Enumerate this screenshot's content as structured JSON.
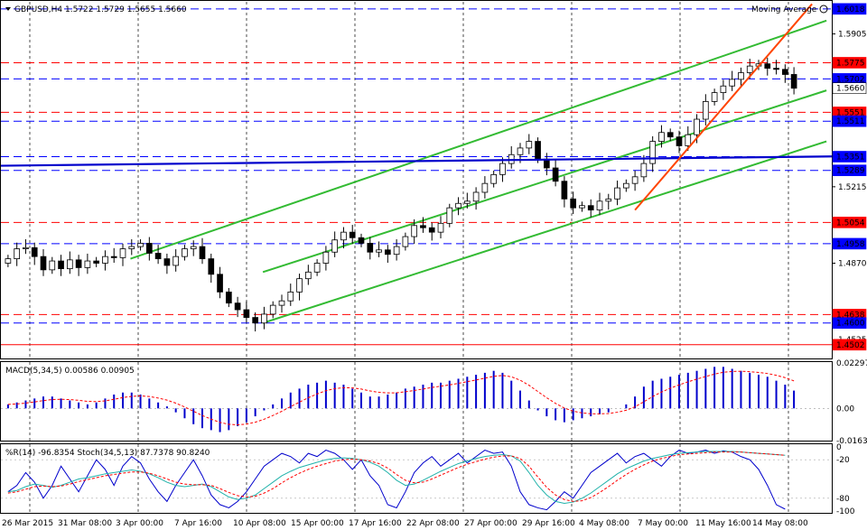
{
  "header": {
    "symbol_line": "GBPUSD,H4   1.5722  1.5729  1.5655  1.5660",
    "indicator_tag": "Moving Average"
  },
  "chart_data": [
    {
      "type": "candlestick",
      "title": "GBPUSD,H4   1.5722  1.5729  1.5655  1.5660",
      "ylim": [
        1.444,
        1.605
      ],
      "price_axis_ticks": [
        "1.5905",
        "1.5560",
        "1.5215",
        "1.4870",
        "1.4525"
      ],
      "x_labels": [
        "26 Mar 2015",
        "31 Mar 08:00",
        "3 Apr 00:00",
        "7 Apr 16:00",
        "10 Apr 08:00",
        "15 Apr 00:00",
        "17 Apr 16:00",
        "22 Apr 08:00",
        "27 Apr 00:00",
        "29 Apr 16:00",
        "4 May 08:00",
        "7 May 00:00",
        "11 May 16:00",
        "14 May 08:00"
      ],
      "closes": [
        1.489,
        1.4935,
        1.494,
        1.49,
        1.484,
        1.488,
        1.4845,
        1.4885,
        1.485,
        1.488,
        1.487,
        1.49,
        1.4895,
        1.4935,
        1.4945,
        1.496,
        1.4915,
        1.489,
        1.486,
        1.49,
        1.4935,
        1.4945,
        1.489,
        1.482,
        1.474,
        1.469,
        1.466,
        1.4625,
        1.46,
        1.464,
        1.468,
        1.47,
        1.474,
        1.48,
        1.483,
        1.487,
        1.492,
        1.4975,
        1.501,
        1.4985,
        1.496,
        1.492,
        1.493,
        1.491,
        1.4945,
        1.499,
        1.504,
        1.503,
        1.501,
        1.505,
        1.512,
        1.514,
        1.515,
        1.519,
        1.523,
        1.527,
        1.532,
        1.536,
        1.539,
        1.542,
        1.534,
        1.53,
        1.524,
        1.516,
        1.512,
        1.513,
        1.511,
        1.515,
        1.516,
        1.521,
        1.523,
        1.526,
        1.532,
        1.542,
        1.546,
        1.544,
        1.54,
        1.545,
        1.552,
        1.56,
        1.564,
        1.567,
        1.57,
        1.573,
        1.576,
        1.577,
        1.575,
        1.5745,
        1.5722,
        1.566
      ],
      "horizontal_levels": [
        {
          "value": 1.6018,
          "label": "1.6018",
          "color": "#0000ff",
          "style": "dashed",
          "labelbox": "#0000ff"
        },
        {
          "value": 1.5775,
          "label": "1.5775",
          "color": "#ff0000",
          "style": "dashed",
          "labelbox": "#ff0000"
        },
        {
          "value": 1.5702,
          "label": "1.5702",
          "color": "#0000ff",
          "style": "dashed",
          "labelbox": "#0000ff"
        },
        {
          "value": 1.566,
          "label": "1.5660",
          "color": "#000000",
          "style": "none",
          "labelbox": "#ffffff"
        },
        {
          "value": 1.5551,
          "label": "1.5551",
          "color": "#ff0000",
          "style": "dashed",
          "labelbox": "#ff0000"
        },
        {
          "value": 1.5511,
          "label": "1.5511",
          "color": "#0000ff",
          "style": "dashed",
          "labelbox": "#0000ff"
        },
        {
          "value": 1.5351,
          "label": "1.5351",
          "color": "#0000ff",
          "style": "dashed",
          "labelbox": "#0000ff"
        },
        {
          "value": 1.5289,
          "label": "1.5289",
          "color": "#0000ff",
          "style": "dashed",
          "labelbox": "#0000ff"
        },
        {
          "value": 1.5054,
          "label": "1.5054",
          "color": "#ff0000",
          "style": "dashed",
          "labelbox": "#ff0000"
        },
        {
          "value": 1.4958,
          "label": "1.4958",
          "color": "#0000ff",
          "style": "dashed",
          "labelbox": "#0000ff"
        },
        {
          "value": 1.4638,
          "label": "1.4638",
          "color": "#ff0000",
          "style": "dashed",
          "labelbox": "#ff0000"
        },
        {
          "value": 1.46,
          "label": "1.4600",
          "color": "#0000ff",
          "style": "dashed",
          "labelbox": "#0000ff"
        },
        {
          "value": 1.4502,
          "label": "1.4502",
          "color": "#ff0000",
          "style": "solid",
          "labelbox": "#ff0000"
        }
      ],
      "moving_average": {
        "color": "#0000cc",
        "from": 1.531,
        "to": 1.5352
      },
      "trend_channel_color": "#33bb33",
      "trend_line_color": "#ff4400"
    },
    {
      "type": "histogram",
      "title": "MACD(5,34,5) 0.00586 0.00905",
      "ylim": [
        -0.0163,
        0.02297
      ],
      "axis_ticks": [
        "0.02297",
        "0.00",
        "-0.0163"
      ],
      "values": [
        0.002,
        0.003,
        0.004,
        0.005,
        0.006,
        0.006,
        0.005,
        0.004,
        0.003,
        0.002,
        0.003,
        0.005,
        0.007,
        0.008,
        0.008,
        0.007,
        0.005,
        0.003,
        0.001,
        -0.002,
        -0.005,
        -0.008,
        -0.01,
        -0.011,
        -0.012,
        -0.011,
        -0.009,
        -0.007,
        -0.004,
        -0.001,
        0.002,
        0.005,
        0.008,
        0.01,
        0.012,
        0.013,
        0.014,
        0.013,
        0.012,
        0.01,
        0.008,
        0.006,
        0.006,
        0.007,
        0.008,
        0.01,
        0.011,
        0.012,
        0.013,
        0.013,
        0.014,
        0.015,
        0.016,
        0.017,
        0.018,
        0.019,
        0.018,
        0.014,
        0.009,
        0.004,
        -0.001,
        -0.004,
        -0.006,
        -0.007,
        -0.006,
        -0.005,
        -0.004,
        -0.003,
        -0.002,
        0.0,
        0.002,
        0.006,
        0.011,
        0.014,
        0.015,
        0.016,
        0.017,
        0.018,
        0.019,
        0.02,
        0.021,
        0.021,
        0.02,
        0.019,
        0.018,
        0.017,
        0.016,
        0.014,
        0.012,
        0.009
      ],
      "bar_color": "#0000cc",
      "signal_color": "#ff0000"
    },
    {
      "type": "line",
      "title": "%R(14) -96.8354  Stoch(34,5,13) 87.7378 90.8240",
      "ylim": [
        -100,
        0
      ],
      "axis_ticks": [
        "0",
        "-20",
        "-80",
        "-100"
      ],
      "percent_r": [
        -70,
        -60,
        -40,
        -55,
        -80,
        -60,
        -30,
        -50,
        -70,
        -45,
        -20,
        -35,
        -60,
        -30,
        -15,
        -25,
        -50,
        -70,
        -85,
        -60,
        -40,
        -20,
        -45,
        -75,
        -90,
        -95,
        -85,
        -70,
        -50,
        -30,
        -20,
        -10,
        -15,
        -25,
        -10,
        -15,
        -5,
        -10,
        -20,
        -35,
        -20,
        -45,
        -60,
        -90,
        -95,
        -70,
        -40,
        -25,
        -15,
        -30,
        -20,
        -10,
        -25,
        -15,
        -5,
        -10,
        -8,
        -30,
        -70,
        -90,
        -95,
        -98,
        -85,
        -70,
        -80,
        -60,
        -40,
        -30,
        -20,
        -10,
        -25,
        -15,
        -10,
        -20,
        -30,
        -15,
        -5,
        -10,
        -8,
        -5,
        -10,
        -6,
        -8,
        -15,
        -20,
        -35,
        -60,
        -90,
        -97
      ],
      "stoch_main": [
        -70,
        -68,
        -62,
        -58,
        -60,
        -63,
        -60,
        -55,
        -50,
        -48,
        -45,
        -42,
        -40,
        -38,
        -36,
        -38,
        -42,
        -48,
        -55,
        -60,
        -62,
        -60,
        -58,
        -62,
        -70,
        -78,
        -82,
        -80,
        -75,
        -65,
        -55,
        -45,
        -38,
        -32,
        -28,
        -24,
        -20,
        -18,
        -17,
        -18,
        -20,
        -24,
        -30,
        -40,
        -52,
        -60,
        -58,
        -52,
        -45,
        -38,
        -32,
        -26,
        -22,
        -18,
        -15,
        -13,
        -12,
        -14,
        -22,
        -40,
        -60,
        -75,
        -85,
        -88,
        -86,
        -80,
        -72,
        -62,
        -52,
        -42,
        -34,
        -28,
        -22,
        -18,
        -15,
        -12,
        -10,
        -9,
        -8,
        -7,
        -7,
        -7,
        -7,
        -8,
        -9,
        -10,
        -11,
        -12,
        -13
      ],
      "stoch_signal": [
        -72,
        -70,
        -66,
        -62,
        -61,
        -62,
        -61,
        -58,
        -54,
        -51,
        -48,
        -45,
        -43,
        -41,
        -39,
        -39,
        -41,
        -45,
        -50,
        -55,
        -58,
        -59,
        -59,
        -60,
        -65,
        -71,
        -76,
        -78,
        -77,
        -72,
        -65,
        -56,
        -48,
        -41,
        -35,
        -30,
        -26,
        -22,
        -20,
        -19,
        -20,
        -22,
        -26,
        -33,
        -43,
        -52,
        -56,
        -55,
        -50,
        -44,
        -38,
        -32,
        -27,
        -23,
        -19,
        -16,
        -14,
        -14,
        -18,
        -30,
        -47,
        -63,
        -75,
        -82,
        -85,
        -84,
        -79,
        -71,
        -62,
        -52,
        -43,
        -35,
        -28,
        -22,
        -18,
        -15,
        -12,
        -11,
        -10,
        -9,
        -8,
        -8,
        -8,
        -8,
        -9,
        -10,
        -11,
        -12,
        -13
      ],
      "r_color": "#0000cc",
      "main_color": "#20b2aa",
      "signal_color": "#ff0000"
    }
  ]
}
